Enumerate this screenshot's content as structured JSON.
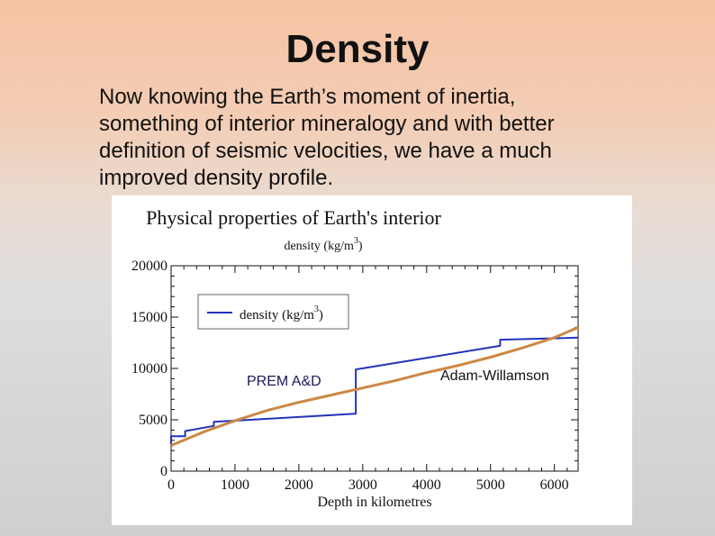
{
  "slide": {
    "title": "Density",
    "body_lines": [
      "Now knowing the Earth’s moment of inertia,",
      "something of interior mineralogy and with better",
      "definition of seismic velocities, we have a much",
      "improved density profile."
    ]
  },
  "colors": {
    "prem_line": "#2233bb",
    "aw_line": "#cc8844"
  },
  "chart_data": {
    "type": "line",
    "title": "Physical properties of Earth's interior",
    "subtitle_base": "density (kg/m",
    "subtitle_sup": "3",
    "subtitle_close": ")",
    "xlabel": "Depth in kilometres",
    "ylabel": "",
    "xlim": [
      0,
      6371
    ],
    "ylim": [
      0,
      20000
    ],
    "x_ticks": [
      0,
      1000,
      2000,
      3000,
      4000,
      5000,
      6000
    ],
    "y_ticks": [
      0,
      5000,
      10000,
      15000,
      20000
    ],
    "legend": {
      "base": "density (kg/m",
      "sup": "3",
      "close": ")",
      "placement": "top-left"
    },
    "annotations": [
      "PREM A&D",
      "Adam-Willamson"
    ],
    "series": [
      {
        "name": "density (kg/m3)",
        "x": [
          0,
          0,
          220,
          220,
          670,
          670,
          2891,
          2891,
          5150,
          5150,
          6371
        ],
        "y": [
          2600,
          3400,
          3400,
          3900,
          4400,
          4800,
          5600,
          9900,
          12200,
          12800,
          13000
        ]
      },
      {
        "name": "",
        "x": [
          0,
          500,
          1000,
          1500,
          2000,
          2500,
          3000,
          3500,
          4000,
          4500,
          5000,
          5500,
          6000,
          6371
        ],
        "y": [
          2500,
          3800,
          4900,
          5900,
          6700,
          7400,
          8100,
          8800,
          9600,
          10300,
          11100,
          12000,
          13000,
          14000
        ]
      }
    ]
  }
}
